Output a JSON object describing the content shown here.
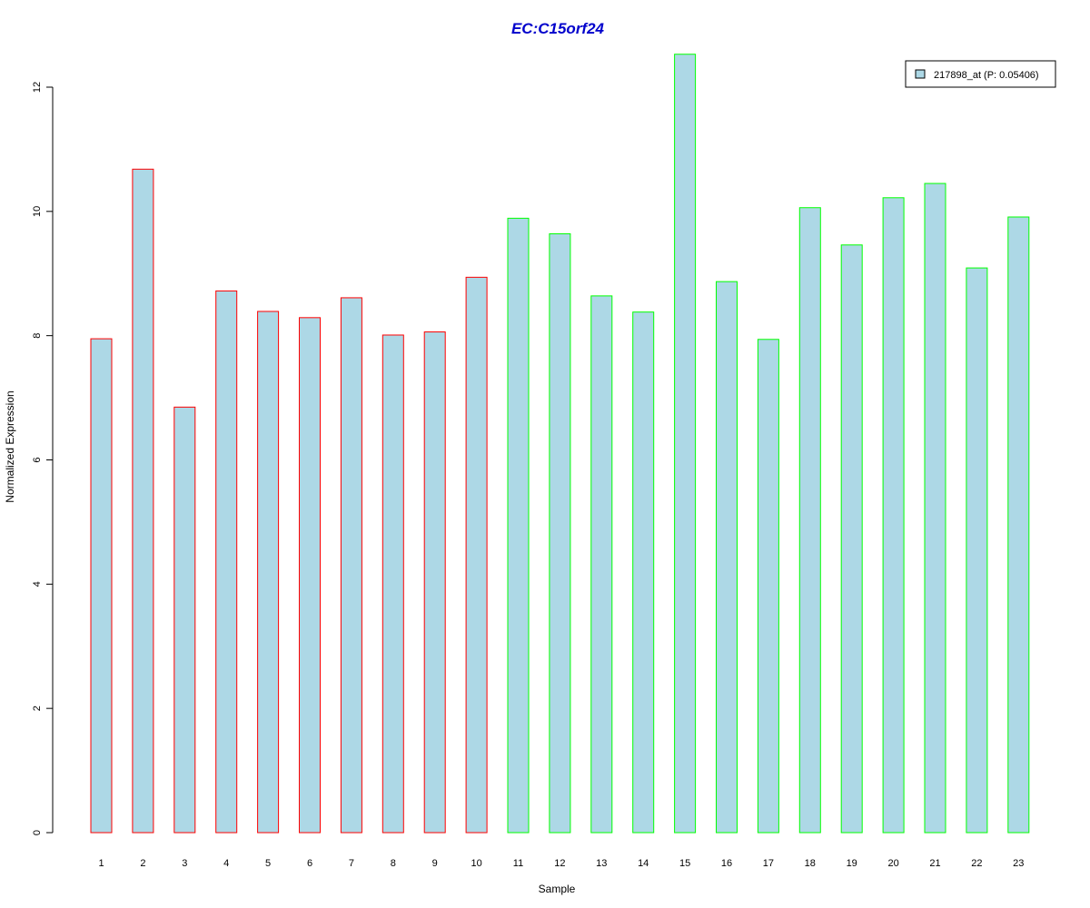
{
  "chart_data": {
    "type": "bar",
    "title": "EC:C15orf24",
    "xlabel": "Sample",
    "ylabel": "Normalized Expression",
    "categories": [
      "1",
      "2",
      "3",
      "4",
      "5",
      "6",
      "7",
      "8",
      "9",
      "10",
      "11",
      "12",
      "13",
      "14",
      "15",
      "16",
      "17",
      "18",
      "19",
      "20",
      "21",
      "22",
      "23"
    ],
    "series": [
      {
        "name": "217898_at (P: 0.05406)",
        "values": [
          7.95,
          10.68,
          6.85,
          8.72,
          8.39,
          8.29,
          8.61,
          8.01,
          8.06,
          8.94,
          9.89,
          9.64,
          8.64,
          8.38,
          12.53,
          8.87,
          7.94,
          10.06,
          9.46,
          10.22,
          10.45,
          9.09,
          9.91
        ]
      }
    ],
    "group_outline": [
      "red",
      "red",
      "red",
      "red",
      "red",
      "red",
      "red",
      "red",
      "red",
      "red",
      "green",
      "green",
      "green",
      "green",
      "green",
      "green",
      "green",
      "green",
      "green",
      "green",
      "green",
      "green",
      "green"
    ],
    "ylim": [
      0,
      12
    ],
    "yticks": [
      "0",
      "2",
      "4",
      "6",
      "8",
      "10",
      "12"
    ],
    "grid": false,
    "legend_position": "top-right",
    "colors": {
      "bar_fill": "#add8e6",
      "red_outline": "#ff0000",
      "green_outline": "#00ff00",
      "title": "#0000cc"
    }
  }
}
